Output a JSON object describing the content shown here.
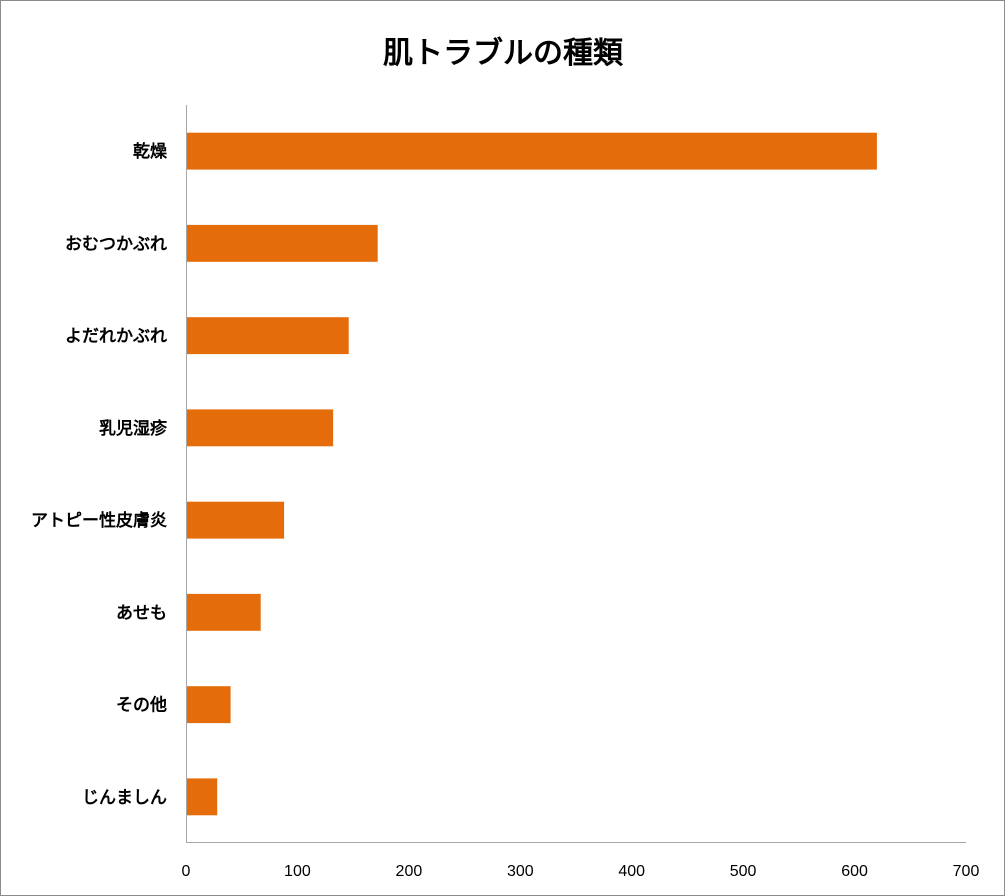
{
  "chart_data": {
    "type": "bar",
    "orientation": "horizontal",
    "title": "肌トラブルの種類",
    "xlabel": "",
    "ylabel": "",
    "categories": [
      "乾燥",
      "おむつかぶれ",
      "よだれかぶれ",
      "乳児湿疹",
      "アトピー性皮膚炎",
      "あせも",
      "その他",
      "じんましん"
    ],
    "values": [
      620,
      172,
      146,
      132,
      88,
      67,
      40,
      28
    ],
    "xlim": [
      0,
      700
    ],
    "xticks": [
      "0",
      "100",
      "200",
      "300",
      "400",
      "500",
      "600",
      "700"
    ],
    "grid": false,
    "legend": "none",
    "bar_color": "#e46c0a"
  }
}
